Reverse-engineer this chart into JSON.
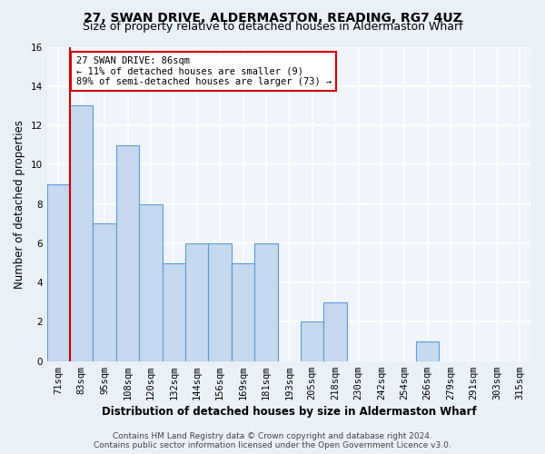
{
  "title": "27, SWAN DRIVE, ALDERMASTON, READING, RG7 4UZ",
  "subtitle": "Size of property relative to detached houses in Aldermaston Wharf",
  "xlabel": "Distribution of detached houses by size in Aldermaston Wharf",
  "ylabel": "Number of detached properties",
  "categories": [
    "71sqm",
    "83sqm",
    "95sqm",
    "108sqm",
    "120sqm",
    "132sqm",
    "144sqm",
    "156sqm",
    "169sqm",
    "181sqm",
    "193sqm",
    "205sqm",
    "218sqm",
    "230sqm",
    "242sqm",
    "254sqm",
    "266sqm",
    "279sqm",
    "291sqm",
    "303sqm",
    "315sqm"
  ],
  "values": [
    9,
    13,
    7,
    11,
    8,
    5,
    6,
    6,
    5,
    6,
    0,
    2,
    3,
    0,
    0,
    0,
    1,
    0,
    0,
    0,
    0
  ],
  "bar_color": "#c5d8ed",
  "bar_edge_color": "#5b9bd5",
  "red_line_x": 0.5,
  "annotation_text": "27 SWAN DRIVE: 86sqm\n← 11% of detached houses are smaller (9)\n89% of semi-detached houses are larger (73) →",
  "annotation_box_color": "#ffffff",
  "annotation_box_edge_color": "#cc0000",
  "ylim": [
    0,
    16
  ],
  "yticks": [
    0,
    2,
    4,
    6,
    8,
    10,
    12,
    14,
    16
  ],
  "footer_line1": "Contains HM Land Registry data © Crown copyright and database right 2024.",
  "footer_line2": "Contains public sector information licensed under the Open Government Licence v3.0.",
  "bg_color": "#eaf0f8",
  "plot_bg_color": "#f0f4fb",
  "grid_color": "#ffffff",
  "title_fontsize": 10,
  "subtitle_fontsize": 9,
  "xlabel_fontsize": 8.5,
  "ylabel_fontsize": 8.5,
  "tick_fontsize": 7.5,
  "annotation_fontsize": 7.5,
  "footer_fontsize": 6.5
}
